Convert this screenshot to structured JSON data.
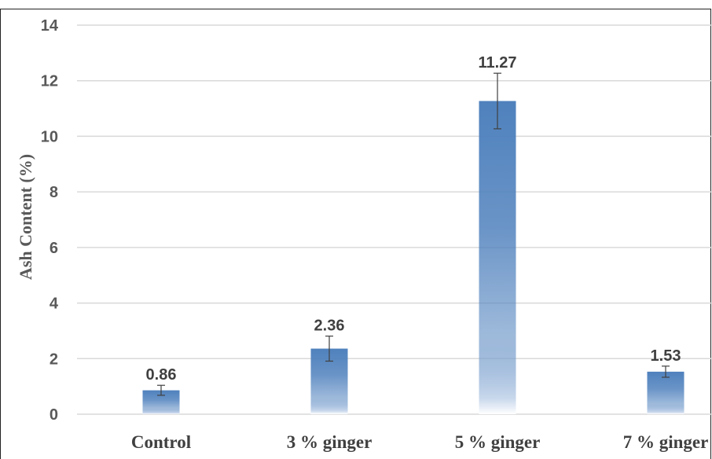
{
  "chart_data": {
    "type": "bar",
    "title": "",
    "xlabel": "",
    "ylabel": "Ash Content  (%)",
    "categories": [
      "Control",
      "3 % ginger",
      "5 % ginger",
      "7 % ginger"
    ],
    "values": [
      0.86,
      2.36,
      11.27,
      1.53
    ],
    "data_labels": [
      "0.86",
      "2.36",
      "11.27",
      "1.53"
    ],
    "error": [
      0.18,
      0.45,
      1.0,
      0.2
    ],
    "ylim": [
      0,
      14
    ],
    "yticks": [
      0,
      2,
      4,
      6,
      8,
      10,
      12,
      14
    ],
    "grid": true,
    "legend": "none",
    "colors": {
      "bar": "#4f81bd",
      "grid": "#d9d9d9",
      "error_bar": "#404040"
    }
  }
}
